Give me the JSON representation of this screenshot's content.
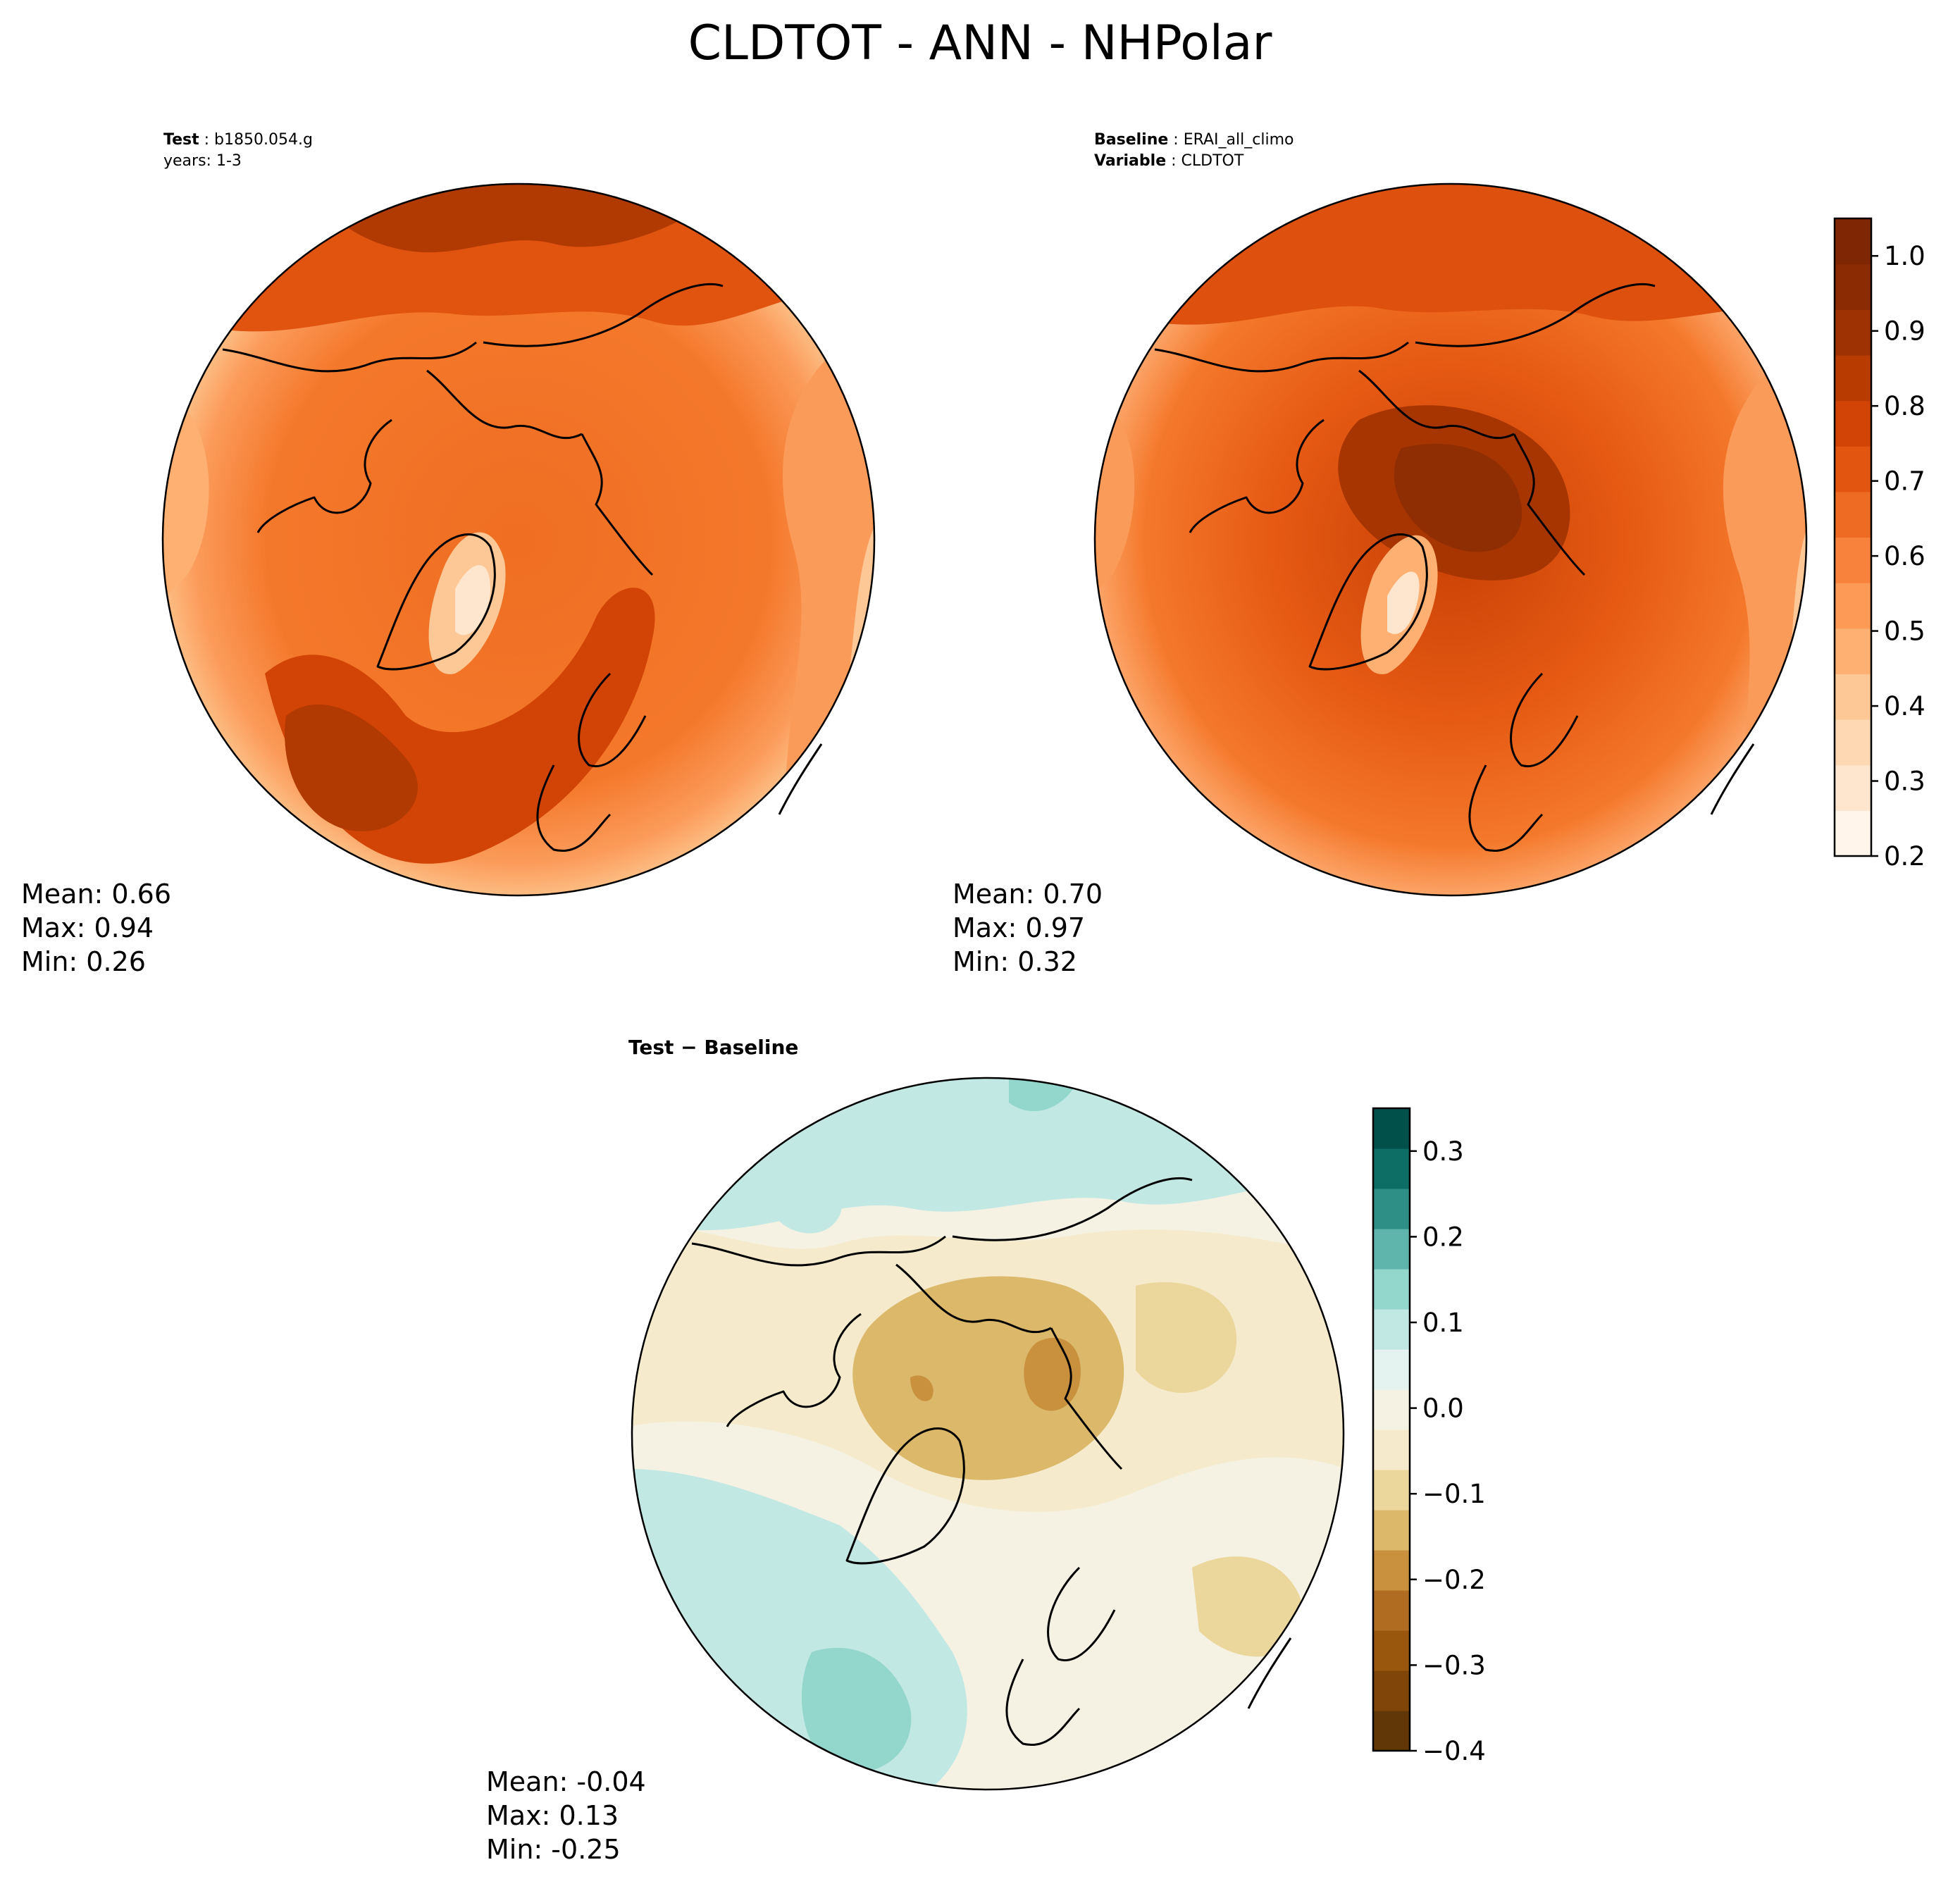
{
  "title": "CLDTOT - ANN - NHPolar",
  "panels": {
    "test": {
      "label": "Test",
      "name": "b1850.054.g",
      "years": "years: 1-3",
      "mean": "Mean:  0.66",
      "max": "Max:  0.94",
      "min": "Min:  0.26"
    },
    "baseline": {
      "label": "Baseline",
      "name": "ERAI_all_climo",
      "variable_label": "Variable",
      "variable": "CLDTOT",
      "mean": "Mean:  0.70",
      "max": "Max:  0.97",
      "min": "Min:  0.32"
    },
    "difference": {
      "title": "Test − Baseline",
      "mean": "Mean: -0.04",
      "max": "Max:  0.13",
      "min": "Min: -0.25"
    }
  },
  "colorbars": {
    "main": {
      "ticks": [
        "0.2",
        "0.3",
        "0.4",
        "0.5",
        "0.6",
        "0.7",
        "0.8",
        "0.9",
        "1.0"
      ],
      "colors": [
        "#fff5eb",
        "#fee6ce",
        "#fdd8b2",
        "#fdc895",
        "#fdb072",
        "#fd9a55",
        "#f8823b",
        "#ee6b24",
        "#e25511",
        "#d24405",
        "#b83c02",
        "#9f3203",
        "#8a2b04",
        "#7f2704"
      ]
    },
    "diff": {
      "ticks": [
        "−0.4",
        "−0.3",
        "−0.2",
        "−0.1",
        "0.0",
        "0.1",
        "0.2",
        "0.3"
      ],
      "colors": [
        "#613707",
        "#7f4509",
        "#99560d",
        "#b06c21",
        "#c9913e",
        "#dbb86a",
        "#ebd69c",
        "#f5ebcc",
        "#f5f2e4",
        "#e4f3f0",
        "#c2e8e4",
        "#93d6cc",
        "#5fb5ab",
        "#2e8f87",
        "#0c6e64",
        "#01514a"
      ]
    }
  },
  "chart_data": [
    {
      "type": "heatmap",
      "title": "Test: b1850.054.g",
      "subtitle": "years: 1-3",
      "projection": "North polar stereographic",
      "colorbar_range": [
        0.2,
        1.05
      ],
      "colorbar_ticks": [
        0.2,
        0.3,
        0.4,
        0.5,
        0.6,
        0.7,
        0.8,
        0.9,
        1.0
      ],
      "stats": {
        "mean": 0.66,
        "max": 0.94,
        "min": 0.26
      }
    },
    {
      "type": "heatmap",
      "title": "Baseline: ERAI_all_climo",
      "subtitle": "Variable: CLDTOT",
      "projection": "North polar stereographic",
      "colorbar_range": [
        0.2,
        1.05
      ],
      "colorbar_ticks": [
        0.2,
        0.3,
        0.4,
        0.5,
        0.6,
        0.7,
        0.8,
        0.9,
        1.0
      ],
      "stats": {
        "mean": 0.7,
        "max": 0.97,
        "min": 0.32
      }
    },
    {
      "type": "heatmap",
      "title": "Test − Baseline",
      "projection": "North polar stereographic",
      "colorbar_range": [
        -0.4,
        0.35
      ],
      "colorbar_ticks": [
        -0.4,
        -0.3,
        -0.2,
        -0.1,
        0.0,
        0.1,
        0.2,
        0.3
      ],
      "stats": {
        "mean": -0.04,
        "max": 0.13,
        "min": -0.25
      }
    }
  ]
}
